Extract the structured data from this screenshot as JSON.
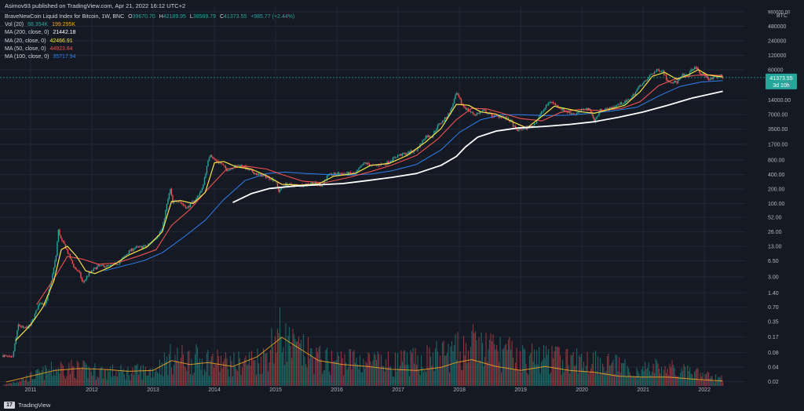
{
  "header": {
    "publisher": "Asimov93 published on TradingView.com, Apr 21, 2022 16:12 UTC+2"
  },
  "legend": {
    "symbol": "BraveNewCoin Liquid Index for Bitcoin, 1W, BNC",
    "ohlc": [
      {
        "k": "O",
        "v": "39670.70"
      },
      {
        "k": "H",
        "v": "42189.95"
      },
      {
        "k": "L",
        "v": "38569.79"
      },
      {
        "k": "C",
        "v": "41373.55"
      },
      {
        "k": "",
        "v": "+985.77 (+2.44%)"
      }
    ],
    "indicators": [
      {
        "label": "Vol (20)",
        "values": [
          "68.354K",
          "199.295K"
        ],
        "colors": [
          "#26a69a",
          "#f5a623"
        ]
      },
      {
        "label": "MA (200, close, 0)",
        "values": [
          "21442.18"
        ],
        "colors": [
          "#ffffff"
        ]
      },
      {
        "label": "MA (20, close, 0)",
        "values": [
          "42466.91"
        ],
        "colors": [
          "#f5e14a"
        ]
      },
      {
        "label": "MA (50, close, 0)",
        "values": [
          "44923.84"
        ],
        "colors": [
          "#ef5350"
        ]
      },
      {
        "label": "MA (100, close, 0)",
        "values": [
          "35717.94"
        ],
        "colors": [
          "#2f80ed"
        ]
      }
    ]
  },
  "branding": {
    "logo": "17",
    "name": "TradingView"
  },
  "chart_data": {
    "type": "candlestick-log",
    "currency_label": "BTC",
    "price_ticks": [
      "960000.00",
      "480000",
      "240000",
      "120000",
      "60000",
      "14000.00",
      "7000.00",
      "3500.00",
      "1700.00",
      "800.00",
      "400.00",
      "200.00",
      "100.00",
      "52.00",
      "26.00",
      "13.00",
      "6.50",
      "3.00",
      "1.40",
      "0.70",
      "0.35",
      "0.17",
      "0.08",
      "0.04",
      "0.02"
    ],
    "price_tick_values": [
      960000,
      480000,
      240000,
      120000,
      60000,
      14000,
      7000,
      3500,
      1700,
      800,
      400,
      200,
      100,
      52,
      26,
      13,
      6.5,
      3,
      1.4,
      0.7,
      0.35,
      0.17,
      0.08,
      0.04,
      0.02
    ],
    "yrange": [
      0.0135,
      1250000
    ],
    "x_ticks": [
      "2011",
      "2012",
      "2013",
      "2014",
      "2015",
      "2016",
      "2017",
      "2018",
      "2019",
      "2020",
      "2021",
      "2022"
    ],
    "xrange": [
      2010.5,
      2022.6
    ],
    "last_price": {
      "value": 41373.55,
      "label": "41373.55",
      "countdown": "3d 10h",
      "color": "#26a69a"
    },
    "price_path": [
      [
        2010.55,
        0.07
      ],
      [
        2010.7,
        0.06
      ],
      [
        2010.8,
        0.3
      ],
      [
        2010.9,
        0.25
      ],
      [
        2011.0,
        0.3
      ],
      [
        2011.15,
        0.9
      ],
      [
        2011.25,
        0.8
      ],
      [
        2011.35,
        3.0
      ],
      [
        2011.42,
        9
      ],
      [
        2011.45,
        29
      ],
      [
        2011.5,
        17
      ],
      [
        2011.55,
        14
      ],
      [
        2011.6,
        10
      ],
      [
        2011.7,
        5
      ],
      [
        2011.8,
        3.5
      ],
      [
        2011.85,
        2.2
      ],
      [
        2011.95,
        3.5
      ],
      [
        2012.1,
        5
      ],
      [
        2012.3,
        5
      ],
      [
        2012.45,
        6
      ],
      [
        2012.6,
        10
      ],
      [
        2012.7,
        12
      ],
      [
        2012.9,
        13
      ],
      [
        2013.05,
        20
      ],
      [
        2013.15,
        30
      ],
      [
        2013.22,
        90
      ],
      [
        2013.28,
        200
      ],
      [
        2013.32,
        100
      ],
      [
        2013.4,
        120
      ],
      [
        2013.55,
        80
      ],
      [
        2013.7,
        125
      ],
      [
        2013.8,
        200
      ],
      [
        2013.88,
        600
      ],
      [
        2013.93,
        1100
      ],
      [
        2014.0,
        800
      ],
      [
        2014.1,
        700
      ],
      [
        2014.2,
        500
      ],
      [
        2014.35,
        600
      ],
      [
        2014.45,
        620
      ],
      [
        2014.55,
        500
      ],
      [
        2014.7,
        400
      ],
      [
        2014.85,
        360
      ],
      [
        2015.0,
        300
      ],
      [
        2015.05,
        180
      ],
      [
        2015.15,
        250
      ],
      [
        2015.3,
        240
      ],
      [
        2015.45,
        240
      ],
      [
        2015.6,
        270
      ],
      [
        2015.75,
        240
      ],
      [
        2015.85,
        380
      ],
      [
        2016.0,
        420
      ],
      [
        2016.3,
        420
      ],
      [
        2016.45,
        700
      ],
      [
        2016.6,
        600
      ],
      [
        2016.8,
        680
      ],
      [
        2017.0,
        1000
      ],
      [
        2017.15,
        1100
      ],
      [
        2017.3,
        1300
      ],
      [
        2017.45,
        2500
      ],
      [
        2017.55,
        2500
      ],
      [
        2017.65,
        4200
      ],
      [
        2017.75,
        5500
      ],
      [
        2017.85,
        8000
      ],
      [
        2017.95,
        19500
      ],
      [
        2018.05,
        11000
      ],
      [
        2018.15,
        8500
      ],
      [
        2018.25,
        7000
      ],
      [
        2018.4,
        8500
      ],
      [
        2018.55,
        6500
      ],
      [
        2018.7,
        6500
      ],
      [
        2018.85,
        5000
      ],
      [
        2018.92,
        3300
      ],
      [
        2019.05,
        3600
      ],
      [
        2019.2,
        4100
      ],
      [
        2019.35,
        8000
      ],
      [
        2019.48,
        13500
      ],
      [
        2019.6,
        10500
      ],
      [
        2019.75,
        8000
      ],
      [
        2019.9,
        7200
      ],
      [
        2020.05,
        9500
      ],
      [
        2020.15,
        8500
      ],
      [
        2020.2,
        4900
      ],
      [
        2020.3,
        8700
      ],
      [
        2020.45,
        9300
      ],
      [
        2020.6,
        11500
      ],
      [
        2020.75,
        13500
      ],
      [
        2020.85,
        18500
      ],
      [
        2020.95,
        29000
      ],
      [
        2021.05,
        35000
      ],
      [
        2021.12,
        48000
      ],
      [
        2021.25,
        60000
      ],
      [
        2021.32,
        57000
      ],
      [
        2021.38,
        38000
      ],
      [
        2021.45,
        34000
      ],
      [
        2021.55,
        33000
      ],
      [
        2021.65,
        47000
      ],
      [
        2021.72,
        44000
      ],
      [
        2021.8,
        62000
      ],
      [
        2021.87,
        66000
      ],
      [
        2021.93,
        49000
      ],
      [
        2022.0,
        47000
      ],
      [
        2022.08,
        38000
      ],
      [
        2022.15,
        40000
      ],
      [
        2022.25,
        46000
      ],
      [
        2022.3,
        41373
      ]
    ],
    "ma20_path": [
      [
        2010.75,
        0.14
      ],
      [
        2011.0,
        0.3
      ],
      [
        2011.2,
        0.7
      ],
      [
        2011.38,
        2.5
      ],
      [
        2011.5,
        11
      ],
      [
        2011.6,
        13
      ],
      [
        2011.75,
        8
      ],
      [
        2011.9,
        4
      ],
      [
        2012.05,
        3.5
      ],
      [
        2012.3,
        4.8
      ],
      [
        2012.6,
        8.5
      ],
      [
        2012.9,
        12.5
      ],
      [
        2013.15,
        26
      ],
      [
        2013.3,
        110
      ],
      [
        2013.45,
        115
      ],
      [
        2013.65,
        100
      ],
      [
        2013.85,
        170
      ],
      [
        2014.0,
        700
      ],
      [
        2014.15,
        750
      ],
      [
        2014.35,
        580
      ],
      [
        2014.6,
        520
      ],
      [
        2014.85,
        380
      ],
      [
        2015.1,
        250
      ],
      [
        2015.4,
        240
      ],
      [
        2015.7,
        255
      ],
      [
        2015.95,
        370
      ],
      [
        2016.3,
        420
      ],
      [
        2016.55,
        620
      ],
      [
        2016.85,
        680
      ],
      [
        2017.15,
        1000
      ],
      [
        2017.45,
        1900
      ],
      [
        2017.7,
        3600
      ],
      [
        2017.95,
        11500
      ],
      [
        2018.15,
        11000
      ],
      [
        2018.35,
        8000
      ],
      [
        2018.6,
        7200
      ],
      [
        2018.9,
        4800
      ],
      [
        2019.1,
        3700
      ],
      [
        2019.35,
        6500
      ],
      [
        2019.55,
        10500
      ],
      [
        2019.8,
        9000
      ],
      [
        2020.0,
        8000
      ],
      [
        2020.2,
        7500
      ],
      [
        2020.45,
        9000
      ],
      [
        2020.7,
        11000
      ],
      [
        2020.95,
        21000
      ],
      [
        2021.15,
        44000
      ],
      [
        2021.35,
        53000
      ],
      [
        2021.55,
        38000
      ],
      [
        2021.75,
        48000
      ],
      [
        2021.9,
        60000
      ],
      [
        2022.05,
        47000
      ],
      [
        2022.3,
        42466
      ]
    ],
    "ma50_path": [
      [
        2011.1,
        0.8
      ],
      [
        2011.4,
        3
      ],
      [
        2011.6,
        8
      ],
      [
        2011.85,
        7
      ],
      [
        2012.1,
        5.5
      ],
      [
        2012.4,
        5.8
      ],
      [
        2012.75,
        8
      ],
      [
        2013.05,
        11
      ],
      [
        2013.3,
        35
      ],
      [
        2013.6,
        75
      ],
      [
        2013.95,
        240
      ],
      [
        2014.2,
        520
      ],
      [
        2014.5,
        600
      ],
      [
        2014.85,
        520
      ],
      [
        2015.1,
        400
      ],
      [
        2015.45,
        290
      ],
      [
        2015.8,
        270
      ],
      [
        2016.2,
        350
      ],
      [
        2016.55,
        460
      ],
      [
        2016.9,
        630
      ],
      [
        2017.3,
        1000
      ],
      [
        2017.65,
        2200
      ],
      [
        2017.95,
        5500
      ],
      [
        2018.2,
        9500
      ],
      [
        2018.45,
        9200
      ],
      [
        2018.75,
        7200
      ],
      [
        2019.0,
        5800
      ],
      [
        2019.35,
        5200
      ],
      [
        2019.65,
        7800
      ],
      [
        2019.95,
        9000
      ],
      [
        2020.3,
        8500
      ],
      [
        2020.65,
        9500
      ],
      [
        2020.95,
        13000
      ],
      [
        2021.25,
        28000
      ],
      [
        2021.55,
        40000
      ],
      [
        2021.85,
        46000
      ],
      [
        2022.1,
        47000
      ],
      [
        2022.3,
        44923
      ]
    ],
    "ma100_path": [
      [
        2012.2,
        4.0
      ],
      [
        2012.5,
        5.0
      ],
      [
        2012.85,
        6.5
      ],
      [
        2013.15,
        9.5
      ],
      [
        2013.5,
        20
      ],
      [
        2013.85,
        45
      ],
      [
        2014.15,
        120
      ],
      [
        2014.5,
        300
      ],
      [
        2014.85,
        420
      ],
      [
        2015.15,
        450
      ],
      [
        2015.5,
        420
      ],
      [
        2015.85,
        400
      ],
      [
        2016.2,
        390
      ],
      [
        2016.55,
        410
      ],
      [
        2016.9,
        480
      ],
      [
        2017.3,
        650
      ],
      [
        2017.7,
        1300
      ],
      [
        2018.0,
        3000
      ],
      [
        2018.35,
        5500
      ],
      [
        2018.7,
        7000
      ],
      [
        2019.0,
        7000
      ],
      [
        2019.4,
        6700
      ],
      [
        2019.75,
        6800
      ],
      [
        2020.1,
        7400
      ],
      [
        2020.5,
        8400
      ],
      [
        2020.9,
        10000
      ],
      [
        2021.25,
        17000
      ],
      [
        2021.6,
        27000
      ],
      [
        2021.95,
        33500
      ],
      [
        2022.3,
        35717
      ]
    ],
    "ma200_path": [
      [
        2014.3,
        105
      ],
      [
        2014.6,
        160
      ],
      [
        2014.9,
        205
      ],
      [
        2015.3,
        230
      ],
      [
        2015.7,
        245
      ],
      [
        2016.1,
        260
      ],
      [
        2016.5,
        300
      ],
      [
        2016.9,
        350
      ],
      [
        2017.3,
        420
      ],
      [
        2017.7,
        620
      ],
      [
        2017.95,
        950
      ],
      [
        2018.1,
        1500
      ],
      [
        2018.3,
        2400
      ],
      [
        2018.6,
        3200
      ],
      [
        2018.95,
        3700
      ],
      [
        2019.4,
        4000
      ],
      [
        2019.8,
        4400
      ],
      [
        2020.2,
        5000
      ],
      [
        2020.6,
        6200
      ],
      [
        2021.0,
        8000
      ],
      [
        2021.4,
        11000
      ],
      [
        2021.8,
        15500
      ],
      [
        2022.3,
        21442
      ]
    ],
    "volume_envelope": [
      [
        2010.55,
        0.01
      ],
      [
        2011.0,
        0.15
      ],
      [
        2011.5,
        0.3
      ],
      [
        2012.0,
        0.25
      ],
      [
        2012.5,
        0.22
      ],
      [
        2013.0,
        0.25
      ],
      [
        2013.3,
        0.45
      ],
      [
        2013.9,
        0.42
      ],
      [
        2014.3,
        0.35
      ],
      [
        2014.8,
        0.45
      ],
      [
        2015.05,
        0.85
      ],
      [
        2015.3,
        0.6
      ],
      [
        2015.8,
        0.4
      ],
      [
        2016.3,
        0.42
      ],
      [
        2016.8,
        0.35
      ],
      [
        2017.3,
        0.4
      ],
      [
        2017.95,
        0.55
      ],
      [
        2018.2,
        0.65
      ],
      [
        2018.7,
        0.55
      ],
      [
        2019.0,
        0.45
      ],
      [
        2019.4,
        0.45
      ],
      [
        2019.9,
        0.4
      ],
      [
        2020.3,
        0.42
      ],
      [
        2020.8,
        0.25
      ],
      [
        2021.3,
        0.3
      ],
      [
        2021.8,
        0.2
      ],
      [
        2022.3,
        0.12
      ]
    ],
    "volume_ma_path": [
      [
        2010.6,
        0.04
      ],
      [
        2011.0,
        0.1
      ],
      [
        2011.4,
        0.16
      ],
      [
        2011.8,
        0.18
      ],
      [
        2012.2,
        0.17
      ],
      [
        2012.6,
        0.15
      ],
      [
        2013.0,
        0.16
      ],
      [
        2013.3,
        0.26
      ],
      [
        2013.6,
        0.22
      ],
      [
        2013.9,
        0.24
      ],
      [
        2014.3,
        0.2
      ],
      [
        2014.7,
        0.3
      ],
      [
        2015.1,
        0.5
      ],
      [
        2015.35,
        0.4
      ],
      [
        2015.7,
        0.26
      ],
      [
        2016.1,
        0.22
      ],
      [
        2016.5,
        0.2
      ],
      [
        2016.9,
        0.17
      ],
      [
        2017.3,
        0.16
      ],
      [
        2017.7,
        0.19
      ],
      [
        2017.95,
        0.24
      ],
      [
        2018.2,
        0.27
      ],
      [
        2018.6,
        0.2
      ],
      [
        2019.0,
        0.16
      ],
      [
        2019.4,
        0.2
      ],
      [
        2019.8,
        0.16
      ],
      [
        2020.2,
        0.14
      ],
      [
        2020.6,
        0.1
      ],
      [
        2021.0,
        0.09
      ],
      [
        2021.4,
        0.09
      ],
      [
        2021.8,
        0.07
      ],
      [
        2022.3,
        0.05
      ]
    ],
    "colors": {
      "background": "#151924",
      "grid": "#232734",
      "up": "#26a69a",
      "down": "#ef5350",
      "ma20": "#f5e14a",
      "ma50": "#ef5350",
      "ma100": "#2f80ed",
      "ma200": "#ffffff",
      "vol_ma": "#f5a623",
      "axis_text": "#b2b5be"
    }
  }
}
